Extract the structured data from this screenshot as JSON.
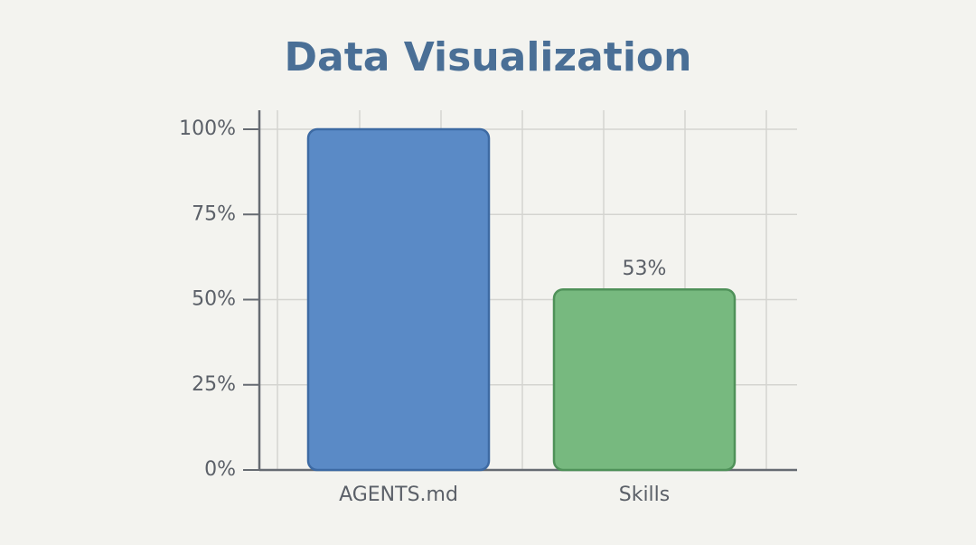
{
  "chart_data": {
    "type": "bar",
    "title": "Data Visualization",
    "categories": [
      "AGENTS.md",
      "Skills"
    ],
    "values": [
      100,
      53
    ],
    "value_labels": [
      null,
      "53%"
    ],
    "colors": [
      "#5a8ac6",
      "#77b97f"
    ],
    "edge_colors": [
      "#3d6aa3",
      "#4f9159"
    ],
    "ylim": [
      0,
      100
    ],
    "yticks": [
      {
        "value": 0,
        "label": "0%"
      },
      {
        "value": 25,
        "label": "25%"
      },
      {
        "value": 50,
        "label": "50%"
      },
      {
        "value": 75,
        "label": "75%"
      },
      {
        "value": 100,
        "label": "100%"
      }
    ],
    "grid": true
  }
}
